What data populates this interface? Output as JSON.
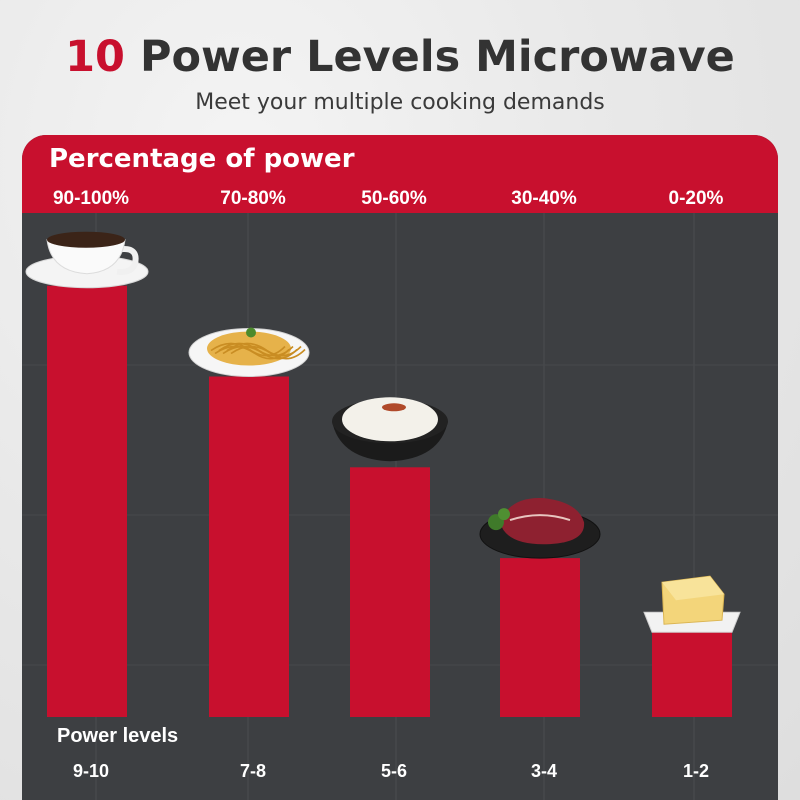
{
  "header": {
    "title_accent": "10",
    "title_rest": " Power Levels Microwave",
    "subtitle": "Meet your multiple cooking demands"
  },
  "panel": {
    "heading": "Percentage of power",
    "levels_title": "Power levels"
  },
  "colors": {
    "accent": "#c8102e",
    "panel_bg": "#3d3f42",
    "bar": "#c8102e",
    "text_dark": "#333333"
  },
  "chart_data": {
    "type": "bar",
    "categories": [
      "9-10",
      "7-8",
      "5-6",
      "3-4",
      "1-2"
    ],
    "category_axis_label": "Power levels",
    "value_axis_label": "Percentage of power",
    "top_labels": [
      "90-100%",
      "70-80%",
      "50-60%",
      "30-40%",
      "0-20%"
    ],
    "values": [
      95,
      75,
      55,
      35,
      20
    ],
    "ylim": [
      0,
      100
    ],
    "food_icons": [
      "coffee-cup-icon",
      "spaghetti-plate-icon",
      "rice-bowl-icon",
      "steak-plate-icon",
      "butter-dish-icon"
    ],
    "grid": true
  }
}
